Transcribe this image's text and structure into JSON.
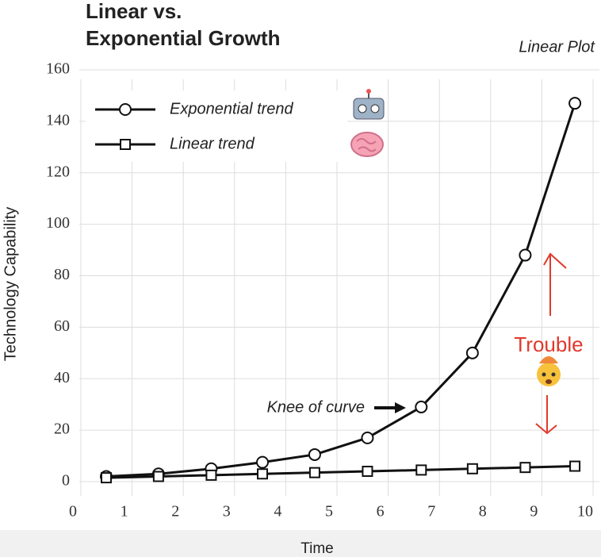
{
  "chart_data": {
    "type": "line",
    "title": [
      "Linear vs.",
      "Exponential Growth"
    ],
    "subtitle": "Linear Plot",
    "x_label": "Time",
    "y_label": "Technology Capability",
    "xlim": [
      0,
      10
    ],
    "xticks": [
      0,
      1,
      2,
      3,
      4,
      5,
      6,
      7,
      8,
      9,
      10
    ],
    "ylim": [
      0,
      160
    ],
    "yticks": [
      0,
      20,
      40,
      60,
      80,
      100,
      120,
      140,
      160
    ],
    "grid": true,
    "legend": "upper left",
    "series": [
      {
        "name": "Exponential trend",
        "color": "#111111",
        "marker": "circle",
        "x": [
          0.65,
          1.67,
          2.7,
          3.7,
          4.72,
          5.75,
          6.8,
          7.8,
          8.83,
          9.8
        ],
        "values": [
          2,
          3,
          5,
          7.5,
          10.5,
          17,
          29,
          50,
          88,
          147
        ]
      },
      {
        "name": "Linear trend",
        "color": "#111111",
        "marker": "square",
        "x": [
          0.65,
          1.67,
          2.7,
          3.7,
          4.72,
          5.75,
          6.8,
          7.8,
          8.83,
          9.8
        ],
        "values": [
          1.5,
          2,
          2.5,
          3,
          3.5,
          4,
          4.5,
          5,
          5.5,
          6
        ]
      }
    ],
    "annotations": [
      {
        "text": "Knee of curve"
      },
      {
        "text": "Trouble",
        "color": "#e0392b"
      }
    ]
  }
}
